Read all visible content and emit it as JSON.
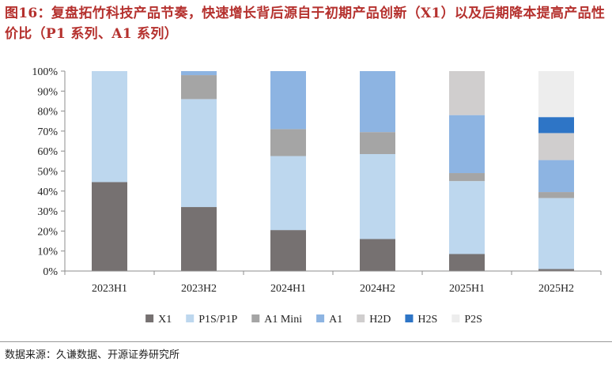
{
  "title": "图16：复盘拓竹科技产品节奏，快速增长背后源自于初期产品创新（X1）以及后期降本提高产品性价比（P1 系列、A1 系列）",
  "source": "数据来源：久谦数据、开源证券研究所",
  "colors": {
    "title": "#b5312e",
    "X1": "#767171",
    "P1S/P1P": "#bdd7ee",
    "A1 Mini": "#a5a5a5",
    "A1": "#8db4e2",
    "H2D": "#d0cece",
    "H2S": "#2e75c6",
    "P2S": "#ededed"
  },
  "chart_data": {
    "type": "bar",
    "stacked": true,
    "normalized": true,
    "categories": [
      "2023H1",
      "2023H2",
      "2024H1",
      "2024H2",
      "2025H1",
      "2025H2"
    ],
    "ylim": [
      0,
      100
    ],
    "yticks": [
      "0%",
      "10%",
      "20%",
      "30%",
      "40%",
      "50%",
      "60%",
      "70%",
      "80%",
      "90%",
      "100%"
    ],
    "legend_position": "bottom",
    "grid": false,
    "series": [
      {
        "name": "X1",
        "values": [
          44.5,
          32,
          20.5,
          16,
          8.5,
          1
        ]
      },
      {
        "name": "P1S/P1P",
        "values": [
          55.5,
          54,
          37,
          42.5,
          36.5,
          35.5
        ]
      },
      {
        "name": "A1 Mini",
        "values": [
          0,
          12,
          13.5,
          11,
          4,
          3
        ]
      },
      {
        "name": "A1",
        "values": [
          0,
          2,
          29,
          30.5,
          29,
          16
        ]
      },
      {
        "name": "H2D",
        "values": [
          0,
          0,
          0,
          0,
          22,
          13.5
        ]
      },
      {
        "name": "H2S",
        "values": [
          0,
          0,
          0,
          0,
          0,
          8
        ]
      },
      {
        "name": "P2S",
        "values": [
          0,
          0,
          0,
          0,
          0,
          23
        ]
      }
    ]
  }
}
